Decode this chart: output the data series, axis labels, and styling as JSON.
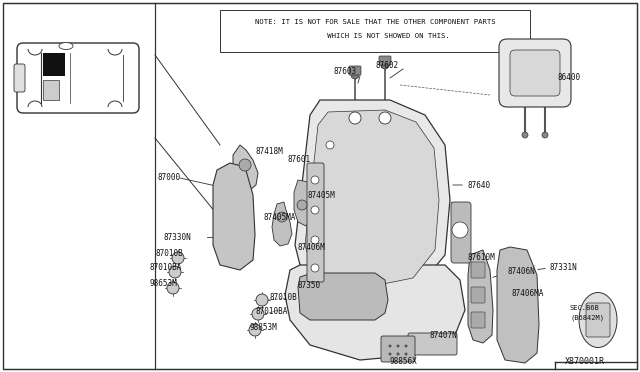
{
  "bg_color": "#ffffff",
  "ec": "#333333",
  "note_text_line1": "NOTE: IT IS NOT FOR SALE THAT THE OTHER COMPONENT PARTS",
  "note_text_line2": "      WHICH IS NOT SHOWED ON THIS.",
  "diagram_id": "X870001R",
  "fig_w": 6.4,
  "fig_h": 3.72,
  "dpi": 100
}
